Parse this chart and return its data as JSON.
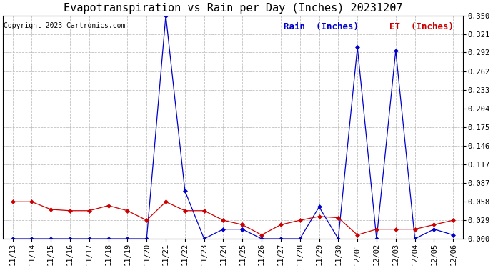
{
  "title": "Evapotranspiration vs Rain per Day (Inches) 20231207",
  "copyright": "Copyright 2023 Cartronics.com",
  "labels": [
    "11/13",
    "11/14",
    "11/15",
    "11/16",
    "11/17",
    "11/18",
    "11/19",
    "11/20",
    "11/21",
    "11/22",
    "11/23",
    "11/24",
    "11/25",
    "11/26",
    "11/27",
    "11/28",
    "11/29",
    "11/30",
    "12/01",
    "12/02",
    "12/03",
    "12/04",
    "12/05",
    "12/06"
  ],
  "rain": [
    0.0,
    0.0,
    0.0,
    0.0,
    0.0,
    0.0,
    0.0,
    0.0,
    0.35,
    0.075,
    0.0,
    0.015,
    0.015,
    0.0,
    0.0,
    0.0,
    0.05,
    0.0,
    0.3,
    0.0,
    0.295,
    0.0,
    0.015,
    0.006
  ],
  "et": [
    0.058,
    0.058,
    0.046,
    0.044,
    0.044,
    0.052,
    0.044,
    0.029,
    0.058,
    0.044,
    0.044,
    0.029,
    0.022,
    0.006,
    0.022,
    0.029,
    0.035,
    0.033,
    0.006,
    0.015,
    0.015,
    0.015,
    0.022,
    0.029
  ],
  "rain_color": "#0000cc",
  "et_color": "#cc0000",
  "background_color": "#ffffff",
  "grid_color": "#bbbbbb",
  "ylim": [
    0.0,
    0.35
  ],
  "yticks": [
    0.0,
    0.029,
    0.058,
    0.087,
    0.117,
    0.146,
    0.175,
    0.204,
    0.233,
    0.262,
    0.292,
    0.321,
    0.35
  ],
  "title_fontsize": 11,
  "copyright_fontsize": 7,
  "tick_fontsize": 7.5,
  "legend_rain": "Rain  (Inches)",
  "legend_et": "ET  (Inches)",
  "legend_fontsize": 9
}
